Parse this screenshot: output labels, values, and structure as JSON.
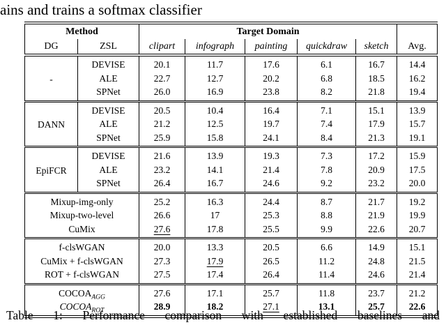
{
  "page": {
    "top_text_fragment": "ains and trains a softmax classifier",
    "caption": "Table 1: Performance comparison with established baselines and"
  },
  "colors": {
    "background": "#ffffff",
    "text": "#000000",
    "rule": "#000000"
  },
  "table": {
    "header": {
      "method": "Method",
      "target_domain": "Target Domain",
      "dg": "DG",
      "zsl": "ZSL",
      "domains": [
        "clipart",
        "infograph",
        "painting",
        "quickdraw",
        "sketch"
      ],
      "avg": "Avg."
    },
    "groups": [
      {
        "dg": "-",
        "rows": [
          {
            "method": "DEVISE",
            "values": [
              "20.1",
              "11.7",
              "17.6",
              "6.1",
              "16.7",
              "14.4"
            ]
          },
          {
            "method": "ALE",
            "values": [
              "22.7",
              "12.7",
              "20.2",
              "6.8",
              "18.5",
              "16.2"
            ]
          },
          {
            "method": "SPNet",
            "values": [
              "26.0",
              "16.9",
              "23.8",
              "8.2",
              "21.8",
              "19.4"
            ]
          }
        ]
      },
      {
        "dg": "DANN",
        "rows": [
          {
            "method": "DEVISE",
            "values": [
              "20.5",
              "10.4",
              "16.4",
              "7.1",
              "15.1",
              "13.9"
            ]
          },
          {
            "method": "ALE",
            "values": [
              "21.2",
              "12.5",
              "19.7",
              "7.4",
              "17.9",
              "15.7"
            ]
          },
          {
            "method": "SPNet",
            "values": [
              "25.9",
              "15.8",
              "24.1",
              "8.4",
              "21.3",
              "19.1"
            ]
          }
        ]
      },
      {
        "dg": "EpiFCR",
        "rows": [
          {
            "method": "DEVISE",
            "values": [
              "21.6",
              "13.9",
              "19.3",
              "7.3",
              "17.2",
              "15.9"
            ]
          },
          {
            "method": "ALE",
            "values": [
              "23.2",
              "14.1",
              "21.4",
              "7.8",
              "20.9",
              "17.5"
            ]
          },
          {
            "method": "SPNet",
            "values": [
              "26.4",
              "16.7",
              "24.6",
              "9.2",
              "23.2",
              "20.0"
            ]
          }
        ]
      },
      {
        "merged": true,
        "rows": [
          {
            "method": "Mixup-img-only",
            "values": [
              "25.2",
              "16.3",
              "24.4",
              "8.7",
              "21.7",
              "19.2"
            ]
          },
          {
            "method": "Mixup-two-level",
            "values": [
              "26.6",
              "17",
              "25.3",
              "8.8",
              "21.9",
              "19.9"
            ]
          },
          {
            "method": "CuMix",
            "values": [
              {
                "v": "27.6",
                "u": true
              },
              "17.8",
              "25.5",
              "9.9",
              "22.6",
              "20.7"
            ]
          }
        ]
      },
      {
        "merged": true,
        "rows": [
          {
            "method": "f-clsWGAN",
            "values": [
              "20.0",
              "13.3",
              "20.5",
              "6.6",
              "14.9",
              "15.1"
            ]
          },
          {
            "method": "CuMix + f-clsWGAN",
            "values": [
              "27.3",
              {
                "v": "17.9",
                "u": true
              },
              "26.5",
              "11.2",
              "24.8",
              "21.5"
            ]
          },
          {
            "method": "ROT + f-clsWGAN",
            "values": [
              "27.5",
              "17.4",
              "26.4",
              "11.4",
              "24.6",
              "21.4"
            ]
          }
        ]
      },
      {
        "merged": true,
        "rows": [
          {
            "method": {
              "base": "COCOA",
              "sub": "AGG",
              "italic": false
            },
            "values": [
              "27.6",
              "17.1",
              "25.7",
              "11.8",
              "23.7",
              "21.2"
            ]
          },
          {
            "method": {
              "base": "COCOA",
              "sub": "ROT",
              "italic": true
            },
            "bold": true,
            "values": [
              {
                "v": "28.9",
                "b": true
              },
              {
                "v": "18.2",
                "b": true
              },
              {
                "v": "27.1",
                "u": true,
                "b": false
              },
              {
                "v": "13.1",
                "b": true
              },
              {
                "v": "25.7",
                "b": true
              },
              {
                "v": "22.6",
                "b": true
              }
            ]
          }
        ]
      }
    ]
  }
}
